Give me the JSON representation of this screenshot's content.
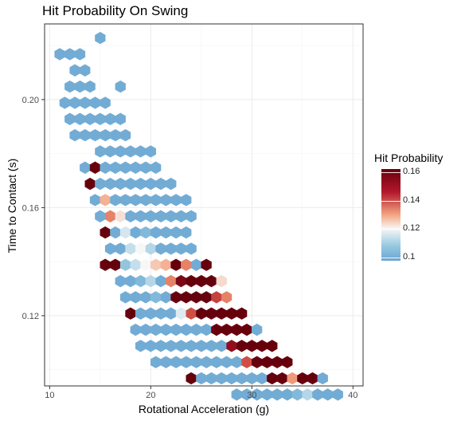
{
  "chart_data": {
    "type": "hexbin",
    "title": "Hit Probability On Swing",
    "xlabel": "Rotational Acceleration (g)",
    "ylabel": "Time to Contact (s)",
    "xlim": [
      9.5,
      41
    ],
    "ylim": [
      0.094,
      0.228
    ],
    "xticks": [
      "10",
      "20",
      "30",
      "40"
    ],
    "yticks": [
      "0.12",
      "0.16",
      "0.20"
    ],
    "xtick_values": [
      10,
      20,
      30,
      40
    ],
    "ytick_values": [
      0.12,
      0.16,
      0.2
    ],
    "grid": true,
    "legend": {
      "title": "Hit Probability",
      "position": "right",
      "ticks": [
        "0.16",
        "0.14",
        "0.12",
        "0.1"
      ],
      "tick_values": [
        0.16,
        0.14,
        0.12,
        0.1
      ],
      "range": [
        0.098,
        0.162
      ]
    },
    "colors": {
      "low": "#6aa6d3",
      "mid": "#f7f7f7",
      "high": "#67000d",
      "panel_border": "#333333",
      "grid": "#ebebeb"
    },
    "rows": [
      {
        "y": 0.2228,
        "x_start": 15.0,
        "values": [
          0.1
        ]
      },
      {
        "y": 0.2168,
        "x_start": 11.0,
        "values": [
          0.1,
          0.1,
          0.1
        ]
      },
      {
        "y": 0.2108,
        "x_start": 12.5,
        "values": [
          0.1,
          0.1
        ]
      },
      {
        "y": 0.2048,
        "x_start": 12.0,
        "values": [
          0.1,
          0.1,
          0.1,
          null,
          null,
          0.1
        ]
      },
      {
        "y": 0.1988,
        "x_start": 11.5,
        "values": [
          0.1,
          0.1,
          0.1,
          0.1,
          0.1
        ]
      },
      {
        "y": 0.1928,
        "x_start": 12.0,
        "values": [
          0.1,
          0.1,
          0.1,
          0.1,
          0.1,
          0.1
        ]
      },
      {
        "y": 0.1868,
        "x_start": 12.5,
        "values": [
          0.1,
          0.1,
          0.1,
          0.1,
          0.1,
          0.1
        ]
      },
      {
        "y": 0.1808,
        "x_start": 15.0,
        "values": [
          0.1,
          0.1,
          0.1,
          0.1,
          0.1,
          0.1
        ]
      },
      {
        "y": 0.1748,
        "x_start": 13.5,
        "values": [
          0.1,
          0.162,
          0.1,
          0.1,
          0.1,
          0.1,
          0.1,
          0.1
        ]
      },
      {
        "y": 0.1688,
        "x_start": 14.0,
        "values": [
          0.162,
          0.1,
          0.1,
          0.1,
          0.1,
          0.1,
          0.1,
          0.1,
          0.1
        ]
      },
      {
        "y": 0.1628,
        "x_start": 14.5,
        "values": [
          0.1,
          0.132,
          0.1,
          0.1,
          0.1,
          0.1,
          0.1,
          0.1,
          0.1,
          0.1
        ]
      },
      {
        "y": 0.1568,
        "x_start": 15.0,
        "values": [
          0.1,
          0.14,
          0.124,
          0.1,
          0.1,
          0.1,
          0.1,
          0.1,
          0.1,
          0.1
        ]
      },
      {
        "y": 0.1508,
        "x_start": 15.5,
        "values": [
          0.162,
          0.1,
          0.116,
          0.1,
          0.104,
          0.1,
          0.1,
          0.1,
          0.1
        ]
      },
      {
        "y": 0.1448,
        "x_start": 16.0,
        "values": [
          0.1,
          0.1,
          0.114,
          0.12,
          0.112,
          0.1,
          0.1,
          0.1,
          0.1
        ]
      },
      {
        "y": 0.1388,
        "x_start": 15.5,
        "values": [
          0.162,
          0.162,
          0.108,
          0.114,
          0.12,
          0.128,
          0.132,
          0.162,
          0.14,
          0.1,
          0.162
        ]
      },
      {
        "y": 0.1328,
        "x_start": 17.0,
        "values": [
          0.1,
          0.1,
          0.104,
          0.112,
          0.1,
          0.14,
          0.16,
          0.162,
          0.162,
          0.162,
          0.125
        ]
      },
      {
        "y": 0.1268,
        "x_start": 17.5,
        "values": [
          0.1,
          0.1,
          0.1,
          0.104,
          0.1,
          0.162,
          0.162,
          0.162,
          0.162,
          0.15,
          0.14
        ]
      },
      {
        "y": 0.1208,
        "x_start": 18.0,
        "values": [
          0.162,
          0.1,
          0.1,
          0.1,
          0.1,
          0.117,
          0.148,
          0.162,
          0.162,
          0.162,
          0.162,
          0.162
        ]
      },
      {
        "y": 0.1148,
        "x_start": 18.5,
        "values": [
          0.1,
          0.1,
          0.1,
          0.1,
          0.1,
          0.1,
          0.1,
          0.1,
          0.162,
          0.162,
          0.162,
          0.162,
          0.1
        ]
      },
      {
        "y": 0.1088,
        "x_start": 19.0,
        "values": [
          0.1,
          0.1,
          0.1,
          0.1,
          0.1,
          0.1,
          0.1,
          0.1,
          0.1,
          0.158,
          0.162,
          0.162,
          0.162,
          0.162
        ]
      },
      {
        "y": 0.1028,
        "x_start": 20.5,
        "values": [
          0.1,
          0.1,
          0.1,
          0.1,
          0.1,
          0.1,
          0.1,
          0.1,
          0.1,
          0.148,
          0.162,
          0.162,
          0.162,
          0.162
        ]
      },
      {
        "y": 0.0968,
        "x_start": 24.0,
        "values": [
          0.162,
          0.1,
          0.1,
          0.1,
          0.1,
          0.1,
          0.1,
          0.1,
          0.162,
          0.162,
          0.136,
          0.162,
          0.162,
          0.1
        ]
      },
      {
        "y": 0.0908,
        "x_start": 28.5,
        "values": [
          0.1,
          0.1,
          0.1,
          0.1,
          0.1,
          0.1,
          0.104,
          0.112,
          0.1,
          0.1,
          0.1
        ]
      }
    ]
  }
}
